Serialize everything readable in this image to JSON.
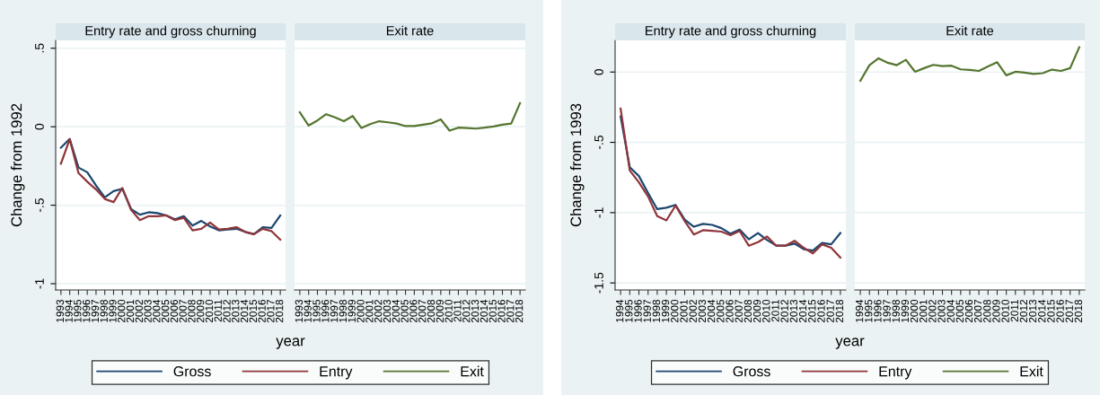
{
  "chart_data": [
    {
      "type": "line",
      "title": "Entry rate and gross churning",
      "ylabel": "Change from 1992",
      "xlabel": "year",
      "legend": "bottom",
      "grid": "y",
      "categories": [
        "1993",
        "1994",
        "1995",
        "1996",
        "1997",
        "1998",
        "1999",
        "2000",
        "2001",
        "2002",
        "2003",
        "2004",
        "2005",
        "2006",
        "2007",
        "2008",
        "2009",
        "2010",
        "2011",
        "2012",
        "2013",
        "2014",
        "2015",
        "2016",
        "2017",
        "2018"
      ],
      "ylim": [
        -1.04,
        0.55
      ],
      "yticks": [
        {
          "value": 0.5,
          "label": ".5"
        },
        0,
        {
          "value": -0.5,
          "label": "-.5"
        },
        -1
      ],
      "series": [
        {
          "name": "Gross",
          "color": "#1a476f",
          "values": [
            -0.133,
            -0.078,
            -0.26,
            -0.29,
            -0.375,
            -0.45,
            -0.41,
            -0.395,
            -0.525,
            -0.56,
            -0.545,
            -0.55,
            -0.565,
            -0.59,
            -0.57,
            -0.63,
            -0.6,
            -0.635,
            -0.66,
            -0.655,
            -0.65,
            -0.67,
            -0.685,
            -0.64,
            -0.645,
            -0.565
          ]
        },
        {
          "name": "Entry",
          "color": "#90353b",
          "values": [
            -0.235,
            -0.08,
            -0.295,
            -0.35,
            -0.4,
            -0.46,
            -0.48,
            -0.39,
            -0.53,
            -0.595,
            -0.57,
            -0.57,
            -0.565,
            -0.595,
            -0.58,
            -0.66,
            -0.65,
            -0.61,
            -0.655,
            -0.65,
            -0.64,
            -0.67,
            -0.685,
            -0.65,
            -0.665,
            -0.72
          ]
        }
      ]
    },
    {
      "type": "line",
      "title": "Exit rate",
      "legend": "bottom",
      "grid": "y",
      "tick_labels": "x",
      "categories": [
        "1993",
        "1994",
        "1995",
        "1996",
        "1997",
        "1998",
        "1999",
        "2000",
        "2001",
        "2002",
        "2003",
        "2004",
        "2005",
        "2006",
        "2007",
        "2008",
        "2009",
        "2010",
        "2011",
        "2012",
        "2013",
        "2014",
        "2015",
        "2016",
        "2017",
        "2018"
      ],
      "ylim": [
        -1.04,
        0.55
      ],
      "yticks": [
        {
          "value": 0.5,
          "label": null
        },
        {
          "value": 0,
          "label": null
        },
        {
          "value": -0.5,
          "label": null
        },
        {
          "value": -1,
          "label": null
        }
      ],
      "series": [
        {
          "name": "Exit",
          "color": "#55752f",
          "values": [
            0.092,
            0.008,
            0.04,
            0.08,
            0.06,
            0.035,
            0.068,
            -0.008,
            0.017,
            0.035,
            0.028,
            0.02,
            0.004,
            0.004,
            0.013,
            0.022,
            0.047,
            -0.025,
            -0.006,
            -0.008,
            -0.012,
            -0.006,
            0.002,
            0.013,
            0.02,
            0.15
          ]
        }
      ]
    },
    {
      "type": "line",
      "title": "Entry rate and gross churning",
      "ylabel": "Change from 1993",
      "xlabel": "year",
      "legend": "bottom",
      "grid": "y",
      "categories": [
        "1994",
        "1995",
        "1996",
        "1997",
        "1998",
        "1999",
        "2000",
        "2001",
        "2002",
        "2003",
        "2004",
        "2005",
        "2006",
        "2007",
        "2008",
        "2009",
        "2010",
        "2011",
        "2012",
        "2013",
        "2014",
        "2015",
        "2016",
        "2017",
        "2018"
      ],
      "ylim": [
        -1.55,
        0.225
      ],
      "yticks": [
        0,
        {
          "value": -0.5,
          "label": "-.5"
        },
        -1,
        -1.5
      ],
      "series": [
        {
          "name": "Gross",
          "color": "#1a476f",
          "values": [
            -0.316,
            -0.677,
            -0.74,
            -0.86,
            -0.975,
            -0.965,
            -0.945,
            -1.05,
            -1.1,
            -1.08,
            -1.087,
            -1.11,
            -1.15,
            -1.12,
            -1.19,
            -1.145,
            -1.195,
            -1.235,
            -1.235,
            -1.22,
            -1.26,
            -1.27,
            -1.215,
            -1.225,
            -1.145
          ]
        },
        {
          "name": "Entry",
          "color": "#90353b",
          "values": [
            -0.26,
            -0.7,
            -0.785,
            -0.885,
            -1.025,
            -1.055,
            -0.95,
            -1.06,
            -1.155,
            -1.125,
            -1.13,
            -1.135,
            -1.16,
            -1.13,
            -1.235,
            -1.21,
            -1.17,
            -1.235,
            -1.235,
            -1.2,
            -1.25,
            -1.29,
            -1.225,
            -1.25,
            -1.32
          ]
        }
      ]
    },
    {
      "type": "line",
      "title": "Exit rate",
      "legend": "bottom",
      "grid": "y",
      "tick_labels": "x",
      "categories": [
        "1994",
        "1995",
        "1996",
        "1997",
        "1998",
        "1999",
        "2000",
        "2001",
        "2002",
        "2003",
        "2004",
        "2005",
        "2006",
        "2007",
        "2008",
        "2009",
        "2010",
        "2011",
        "2012",
        "2013",
        "2014",
        "2015",
        "2016",
        "2017",
        "2018"
      ],
      "ylim": [
        -1.55,
        0.225
      ],
      "yticks": [
        {
          "value": 0,
          "label": null
        },
        {
          "value": -0.5,
          "label": null
        },
        {
          "value": -1,
          "label": null
        },
        {
          "value": -1.5,
          "label": null
        }
      ],
      "series": [
        {
          "name": "Exit",
          "color": "#55752f",
          "values": [
            -0.062,
            0.049,
            0.098,
            0.066,
            0.049,
            0.087,
            0.002,
            0.028,
            0.051,
            0.042,
            0.045,
            0.019,
            0.015,
            0.008,
            0.04,
            0.07,
            -0.023,
            0.002,
            -0.004,
            -0.013,
            -0.008,
            0.017,
            0.008,
            0.028,
            0.176
          ]
        }
      ]
    }
  ]
}
